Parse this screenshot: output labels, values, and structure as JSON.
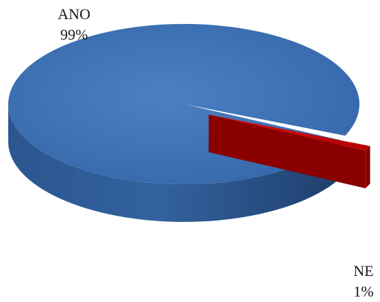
{
  "chart_data": {
    "type": "pie",
    "three_d": true,
    "categories": [
      "ANO",
      "NE"
    ],
    "values": [
      99,
      1
    ],
    "labels": [
      "99%",
      "1%"
    ],
    "colors": [
      "#3a6db0",
      "#c40000"
    ],
    "exploded": [
      "NE"
    ],
    "legend": "none"
  }
}
